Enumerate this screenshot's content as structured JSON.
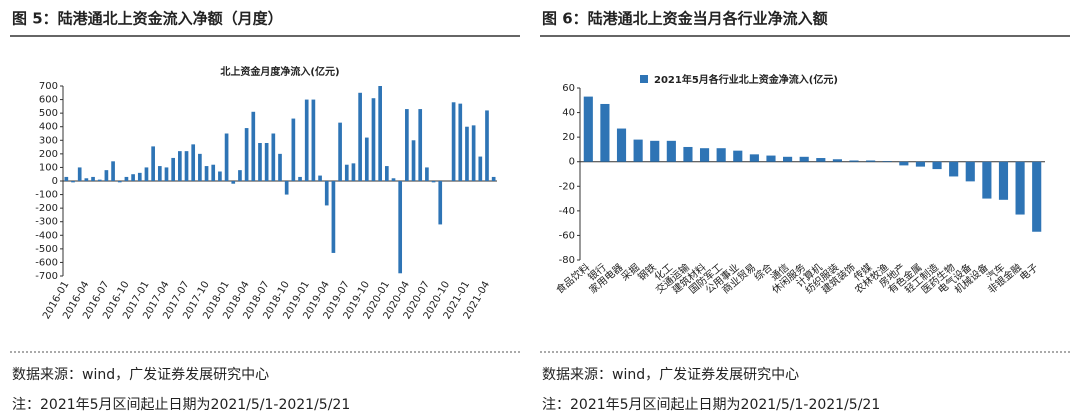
{
  "chart_data": [
    {
      "type": "bar",
      "title": "图 5：陆港通北上资金流入净额（月度）",
      "subtitle": "北上资金月度净流入(亿元)",
      "categories": [
        "2016-01",
        null,
        null,
        "2016-04",
        null,
        null,
        "2016-07",
        null,
        null,
        "2016-10",
        null,
        null,
        "2017-01",
        null,
        null,
        "2017-04",
        null,
        null,
        "2017-07",
        null,
        null,
        "2017-10",
        null,
        null,
        "2018-01",
        null,
        null,
        "2018-04",
        null,
        null,
        "2018-07",
        null,
        null,
        "2018-10",
        null,
        null,
        "2019-01",
        null,
        null,
        "2019-04",
        null,
        null,
        "2019-07",
        null,
        null,
        "2019-10",
        null,
        null,
        "2020-01",
        null,
        null,
        "2020-04",
        null,
        null,
        "2020-07",
        null,
        null,
        "2020-10",
        null,
        null,
        "2021-01",
        null,
        null,
        "2021-04",
        null
      ],
      "values": [
        30,
        -10,
        100,
        20,
        30,
        10,
        80,
        145,
        -10,
        30,
        50,
        60,
        100,
        255,
        110,
        100,
        170,
        220,
        220,
        270,
        200,
        110,
        120,
        70,
        350,
        -20,
        80,
        390,
        510,
        280,
        280,
        350,
        200,
        -100,
        460,
        30,
        600,
        600,
        40,
        -180,
        -530,
        430,
        120,
        130,
        650,
        320,
        610,
        700,
        110,
        20,
        -680,
        530,
        300,
        530,
        100,
        -10,
        -320,
        0,
        580,
        570,
        400,
        410,
        180,
        520,
        30
      ],
      "color": "#2e74b5",
      "ylim": [
        -700,
        700
      ],
      "yticks": [
        -700,
        -600,
        -500,
        -400,
        -300,
        -200,
        -100,
        0,
        100,
        200,
        300,
        400,
        500,
        600,
        700
      ],
      "source": "数据来源：wind，广发证券发展研究中心",
      "note": "注：2021年5月区间起止日期为2021/5/1-2021/5/21"
    },
    {
      "type": "bar",
      "title": "图 6：陆港通北上资金当月各行业净流入额",
      "categories": [
        "食品饮料",
        "银行",
        "家用电器",
        "采掘",
        "钢铁",
        "化工",
        "交通运输",
        "建筑材料",
        "国防军工",
        "公用事业",
        "商业贸易",
        "综合",
        "通信",
        "休闲服务",
        "计算机",
        "纺织服装",
        "建筑装饰",
        "传媒",
        "农林牧渔",
        "房地产",
        "有色金属",
        "轻工制造",
        "医药生物",
        "电气设备",
        "机械设备",
        "汽车",
        "非银金融",
        "电子"
      ],
      "series": [
        {
          "name": "2021年5月各行业北上资金净流入(亿元)",
          "color": "#2e74b5",
          "values": [
            53,
            47,
            27,
            18,
            17,
            17,
            12,
            11,
            11,
            9,
            6,
            5,
            4,
            4,
            3,
            2,
            1,
            1,
            0.5,
            -3,
            -4,
            -6,
            -12,
            -16,
            -30,
            -31,
            -43,
            -57
          ]
        }
      ],
      "ylim": [
        -80,
        60
      ],
      "yticks": [
        -80,
        -60,
        -40,
        -20,
        0,
        20,
        40,
        60
      ],
      "source": "数据来源：wind，广发证券发展研究中心",
      "note": "注：2021年5月区间起止日期为2021/5/1-2021/5/21"
    }
  ]
}
